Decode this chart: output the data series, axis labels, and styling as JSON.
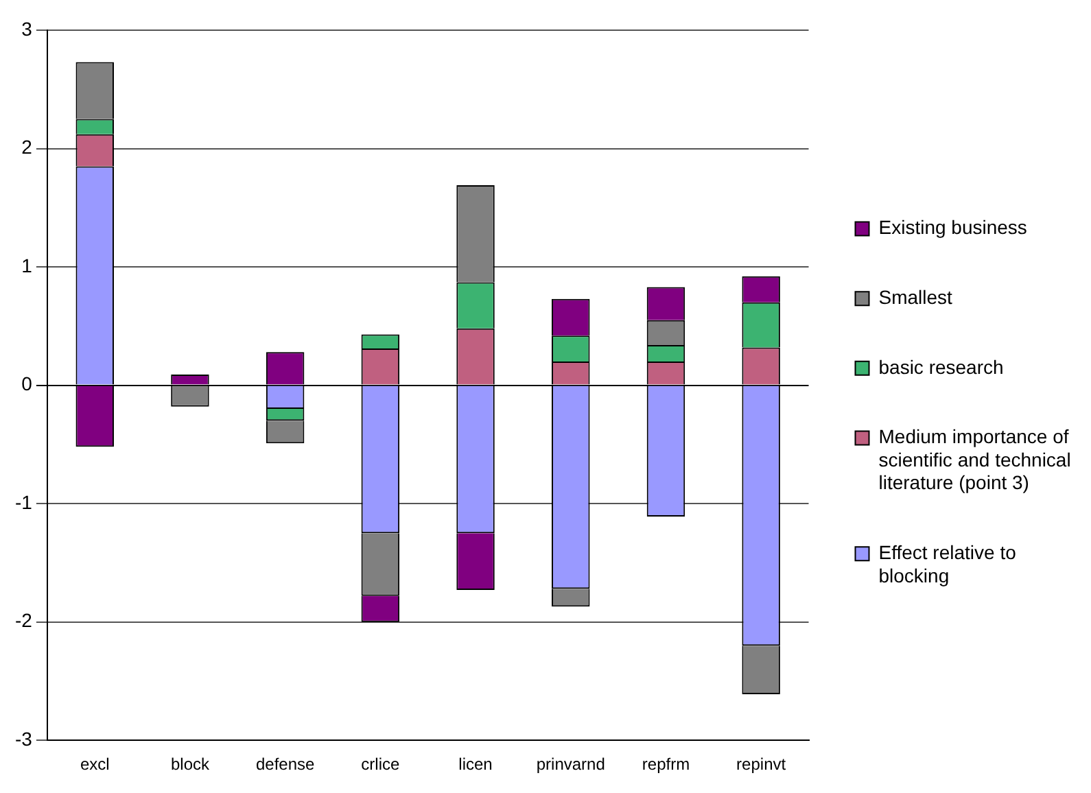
{
  "chart_data": {
    "type": "bar",
    "stacked": true,
    "categories": [
      "excl",
      "block",
      "defense",
      "crlice",
      "licen",
      "prinvarnd",
      "repfrm",
      "repinvt"
    ],
    "series": [
      {
        "name": "Effect relative to blocking",
        "color": "#9999ff",
        "values": [
          1.85,
          null,
          -0.2,
          -1.25,
          -1.25,
          -1.72,
          -1.11,
          -2.2
        ]
      },
      {
        "name": "Medium importance of scientific and technical literature (point 3)",
        "color": "#c06080",
        "values": [
          0.27,
          null,
          null,
          0.31,
          0.48,
          0.2,
          0.2,
          0.32
        ]
      },
      {
        "name": "basic research",
        "color": "#3cb371",
        "values": [
          0.13,
          null,
          -0.1,
          0.12,
          0.39,
          0.22,
          0.14,
          0.38
        ]
      },
      {
        "name": "Smallest",
        "color": "#808080",
        "values": [
          0.48,
          -0.18,
          -0.19,
          -0.53,
          0.82,
          -0.15,
          0.21,
          -0.41
        ]
      },
      {
        "name": "Existing business",
        "color": "#800080",
        "values": [
          -0.52,
          0.09,
          0.28,
          -0.22,
          -0.48,
          0.31,
          0.28,
          0.22
        ]
      }
    ],
    "ylim": [
      -3,
      3
    ],
    "yticks": [
      -3,
      -2,
      -1,
      0,
      1,
      2,
      3
    ],
    "grid": "y",
    "legend": "right"
  }
}
